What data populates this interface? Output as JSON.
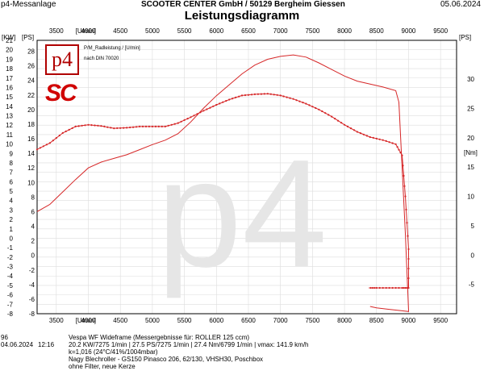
{
  "header": {
    "left": "p4-Messanlage",
    "center": "SCOOTER CENTER GmbH / 50129 Bergheim Giessen",
    "right": "05.06.2024",
    "title": "Leistungsdiagramm"
  },
  "legend": {
    "line1": "P/M_Radleistung / [U/min]",
    "line2": "nach DIN 70020"
  },
  "watermark": "p4",
  "footer": {
    "id": "96",
    "date": "04.06.2024",
    "time": "12:16",
    "lines": [
      "Vespa WF Wideframe (Messergebnisse für: ROLLER 125 ccm)",
      "20.2 KW/7275 1/min  |  27.5 PS/7275 1/min  |  27.4 Nm/6799 1/min | vmax: 141.9 km/h",
      "k=1,016 (24°C/41%/1004mbar)",
      "Nagy Blechroller - GS150 Pinasco 206, 62/130, VHSH30, Poschbox",
      "ohne Filter, neue Kerze"
    ]
  },
  "colors": {
    "curve": "#d62728",
    "grid": "#dddddd",
    "watermark": "#e6e6e6"
  },
  "chart_data": {
    "type": "line",
    "x_unit_label": "[U/min]",
    "x_ticks": [
      3500,
      4000,
      4500,
      5000,
      5500,
      6000,
      6500,
      7000,
      7500,
      8000,
      8500,
      9000,
      9500
    ],
    "x_range": [
      3200,
      9750
    ],
    "left_axis": {
      "kw_label": "[KW]",
      "ps_label": "[PS]",
      "kw_ticks": [
        -8,
        -7,
        -6,
        -5,
        -4,
        -3,
        -2,
        -1,
        0,
        1,
        2,
        3,
        4,
        5,
        6,
        7,
        8,
        9,
        10,
        11,
        12,
        13,
        14,
        15,
        16,
        17,
        18,
        19,
        20,
        21
      ],
      "kw_range": [
        -8,
        21
      ],
      "ps_ticks": [
        -8,
        -6,
        -4,
        -2,
        0,
        2,
        4,
        6,
        8,
        10,
        12,
        14,
        16,
        18,
        20,
        22,
        24,
        26,
        28
      ],
      "ps_range": [
        -8,
        29.5
      ]
    },
    "right_axis": {
      "ps_label": "[PS]",
      "ps_ticks": [
        -5,
        0,
        5,
        10,
        15,
        20,
        25,
        30
      ],
      "nm_label": "[Nm]",
      "nm_range": [
        -10,
        36.6
      ]
    },
    "series": [
      {
        "kind": "power",
        "unit": "PS",
        "x": [
          3200,
          3400,
          3600,
          3800,
          4000,
          4200,
          4400,
          4600,
          4800,
          5000,
          5200,
          5400,
          5600,
          5800,
          6000,
          6200,
          6400,
          6600,
          6800,
          7000,
          7200,
          7400,
          7600,
          7800,
          8000,
          8200,
          8400,
          8600,
          8800,
          8850,
          8900,
          8950,
          9000,
          9000,
          8900,
          8700,
          8500,
          8400
        ],
        "y": [
          6.0,
          7.0,
          8.7,
          10.4,
          12.0,
          12.8,
          13.3,
          13.8,
          14.5,
          15.2,
          15.8,
          16.7,
          18.3,
          20.2,
          21.9,
          23.4,
          24.9,
          26.1,
          26.9,
          27.3,
          27.5,
          27.2,
          26.4,
          25.5,
          24.6,
          23.9,
          23.5,
          23.1,
          22.6,
          21.0,
          12.0,
          3.0,
          -7.6,
          -7.7,
          -7.6,
          -7.4,
          -7.2,
          -7.0
        ]
      },
      {
        "kind": "torque",
        "unit": "Nm",
        "x": [
          3200,
          3400,
          3600,
          3800,
          4000,
          4200,
          4400,
          4600,
          4800,
          5000,
          5200,
          5400,
          5600,
          5800,
          6000,
          6200,
          6400,
          6600,
          6800,
          7000,
          7200,
          7400,
          7600,
          7800,
          8000,
          8200,
          8400,
          8600,
          8800,
          8900,
          8950,
          9000,
          9000,
          8900,
          8700,
          8500,
          8380
        ],
        "y": [
          18.0,
          19.1,
          20.8,
          21.9,
          22.2,
          22.0,
          21.6,
          21.7,
          21.9,
          21.9,
          21.9,
          22.5,
          23.5,
          24.6,
          25.6,
          26.5,
          27.2,
          27.4,
          27.5,
          27.2,
          26.6,
          25.8,
          24.8,
          23.6,
          22.2,
          21.0,
          20.1,
          19.6,
          18.9,
          17.0,
          10.0,
          1.0,
          -5.6,
          -5.6,
          -5.6,
          -5.6,
          -5.6
        ],
        "markers": true
      }
    ]
  }
}
